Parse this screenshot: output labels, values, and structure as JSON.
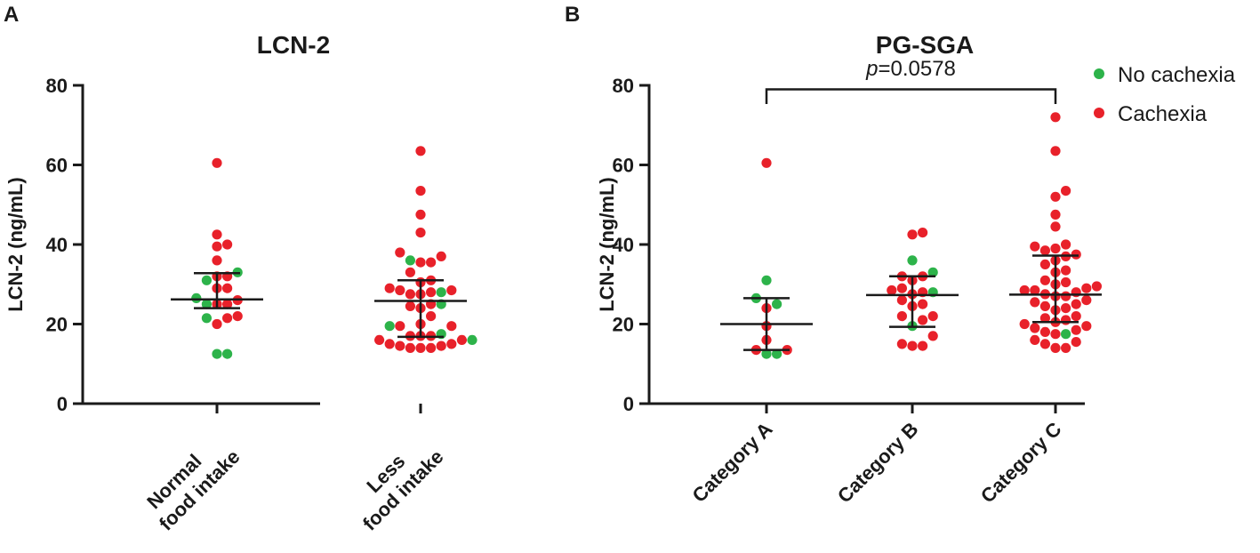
{
  "colors": {
    "no_cachexia": "#2db34a",
    "cachexia": "#e8212a",
    "axis": "#1a1a1a"
  },
  "legend": {
    "no_cachexia": "No cachexia",
    "cachexia": "Cachexia"
  },
  "chart_data": [
    {
      "panel": "A",
      "type": "scatter",
      "title": "LCN-2",
      "ylabel": "LCN-2 (ng/mL)",
      "ylim": [
        0,
        80
      ],
      "yticks": [
        0,
        20,
        40,
        60,
        80
      ],
      "categories": [
        {
          "label_lines": [
            "Normal",
            "food intake"
          ],
          "median": 26.2,
          "q1": 24.0,
          "q3": 32.8,
          "no_cachexia": [
            33.0,
            31.0,
            26.5,
            25.0,
            21.5,
            12.5,
            12.5
          ],
          "cachexia": [
            60.5,
            42.5,
            40.0,
            39.5,
            36.0,
            32.0,
            32.0,
            29.0,
            29.0,
            26.0,
            25.0,
            25.0,
            22.0,
            21.5,
            20.0
          ]
        },
        {
          "label_lines": [
            "Less",
            "food intake"
          ],
          "median": 25.8,
          "q1": 16.8,
          "q3": 31.0,
          "no_cachexia": [
            36.0,
            28.0,
            25.0,
            19.5,
            17.5,
            16.0
          ],
          "cachexia": [
            63.5,
            53.5,
            47.5,
            43.0,
            38.0,
            37.0,
            35.5,
            35.5,
            33.0,
            31.0,
            30.5,
            29.0,
            28.5,
            28.5,
            28.0,
            27.5,
            27.5,
            25.0,
            24.5,
            24.0,
            22.0,
            20.0,
            19.5,
            19.5,
            17.0,
            17.0,
            17.0,
            16.0,
            15.0,
            14.5,
            14.0,
            14.0,
            14.0,
            14.5,
            15.0,
            16.0
          ]
        }
      ]
    },
    {
      "panel": "B",
      "type": "scatter",
      "title": "PG-SGA",
      "ylabel": "LCN-2 (ng/mL)",
      "ylim": [
        0,
        80
      ],
      "yticks": [
        0,
        20,
        40,
        60,
        80
      ],
      "annotation": {
        "from": 0,
        "to": 2,
        "y": 79,
        "p_italic": "p",
        "p_rest": "=0.0578"
      },
      "categories": [
        {
          "label_lines": [
            "Category A"
          ],
          "median": 20.0,
          "q1": 13.5,
          "q3": 26.5,
          "no_cachexia": [
            31.0,
            26.5,
            25.0,
            12.5,
            12.5
          ],
          "cachexia": [
            60.5,
            24.0,
            19.5,
            16.0,
            13.5,
            13.5
          ]
        },
        {
          "label_lines": [
            "Category B"
          ],
          "median": 27.3,
          "q1": 19.3,
          "q3": 32.0,
          "no_cachexia": [
            36.0,
            33.0,
            28.0,
            19.5
          ],
          "cachexia": [
            43.0,
            42.5,
            32.0,
            32.0,
            31.0,
            29.0,
            28.5,
            28.0,
            27.5,
            26.0,
            25.0,
            24.5,
            22.0,
            22.0,
            21.0,
            17.0,
            15.0,
            14.5,
            14.5
          ]
        },
        {
          "label_lines": [
            "Category C"
          ],
          "median": 27.4,
          "q1": 20.5,
          "q3": 37.2,
          "no_cachexia": [
            17.5
          ],
          "cachexia": [
            72.0,
            63.5,
            53.5,
            52.0,
            47.5,
            44.5,
            40.0,
            39.5,
            39.0,
            38.5,
            37.5,
            37.0,
            36.0,
            35.0,
            33.5,
            33.0,
            31.0,
            30.5,
            30.0,
            29.5,
            29.0,
            28.5,
            28.5,
            28.0,
            27.5,
            27.0,
            27.0,
            26.0,
            25.5,
            25.0,
            24.5,
            24.0,
            23.5,
            22.0,
            21.5,
            21.0,
            20.5,
            20.0,
            19.5,
            19.0,
            18.5,
            18.0,
            17.5,
            16.0,
            15.5,
            15.0,
            14.0,
            14.0
          ]
        }
      ]
    }
  ]
}
